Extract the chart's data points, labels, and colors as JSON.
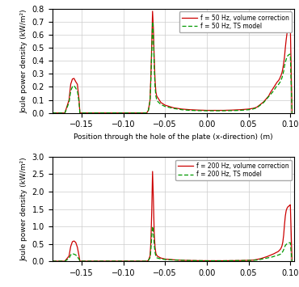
{
  "top_plot": {
    "ylabel": "Joule power density (kW/m²)",
    "xlabel": "Position through the hole of the plate (x-direction) (m)",
    "ylim": [
      0,
      0.8
    ],
    "xlim": [
      -0.185,
      0.105
    ],
    "yticks": [
      0,
      0.1,
      0.2,
      0.3,
      0.4,
      0.5,
      0.6,
      0.7,
      0.8
    ],
    "xticks": [
      -0.15,
      -0.1,
      -0.05,
      0,
      0.05,
      0.1
    ],
    "legend": [
      "f = 50 Hz, volume correction",
      "f = 50 Hz, TS model"
    ],
    "red_color": "#cc0000",
    "green_color": "#009900"
  },
  "bottom_plot": {
    "ylabel": "Joule power density (kW/m²)",
    "ylim": [
      0,
      3.0
    ],
    "xlim": [
      -0.185,
      0.105
    ],
    "yticks": [
      0,
      0.5,
      1.0,
      1.5,
      2.0,
      2.5,
      3.0
    ],
    "xticks": [
      -0.15,
      -0.1,
      -0.05,
      0,
      0.05,
      0.1
    ],
    "legend": [
      "f = 200 Hz, volume correction",
      "f = 200 Hz, TS model"
    ],
    "red_color": "#cc0000",
    "green_color": "#009900"
  }
}
